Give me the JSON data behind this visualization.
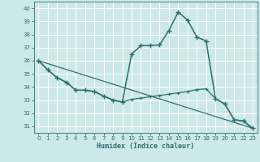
{
  "xlabel": "Humidex (Indice chaleur)",
  "background_color": "#cde8e8",
  "grid_color": "#ffffff",
  "line_color": "#2e6e6e",
  "xlim": [
    -0.5,
    23.5
  ],
  "ylim": [
    30.5,
    40.5
  ],
  "xticks": [
    0,
    1,
    2,
    3,
    4,
    5,
    6,
    7,
    8,
    9,
    10,
    11,
    12,
    13,
    14,
    15,
    16,
    17,
    18,
    19,
    20,
    21,
    22,
    23
  ],
  "yticks": [
    31,
    32,
    33,
    34,
    35,
    36,
    37,
    38,
    39,
    40
  ],
  "line1_x": [
    0,
    1,
    2,
    3,
    4,
    5,
    6,
    7,
    8,
    9,
    10,
    11,
    12,
    13,
    14,
    15,
    16,
    17,
    18,
    19,
    20,
    21,
    22,
    23
  ],
  "line1_y": [
    36.0,
    35.3,
    34.7,
    34.35,
    33.75,
    33.75,
    33.65,
    33.3,
    33.0,
    32.85,
    36.5,
    37.15,
    37.15,
    37.2,
    38.3,
    39.7,
    39.1,
    37.8,
    37.5,
    33.1,
    32.7,
    31.5,
    31.4,
    30.85
  ],
  "line2_x": [
    0,
    1,
    2,
    3,
    4,
    5,
    6,
    7,
    8,
    9,
    10,
    11,
    12,
    13,
    14,
    15,
    16,
    17,
    18,
    19,
    20,
    21,
    22,
    23
  ],
  "line2_y": [
    36.0,
    35.3,
    34.7,
    34.35,
    33.75,
    33.75,
    33.65,
    33.3,
    33.0,
    32.85,
    33.05,
    33.15,
    33.25,
    33.35,
    33.45,
    33.55,
    33.65,
    33.8,
    33.85,
    33.1,
    32.7,
    31.5,
    31.4,
    30.85
  ],
  "line3_x": [
    0,
    23
  ],
  "line3_y": [
    36.0,
    30.85
  ]
}
